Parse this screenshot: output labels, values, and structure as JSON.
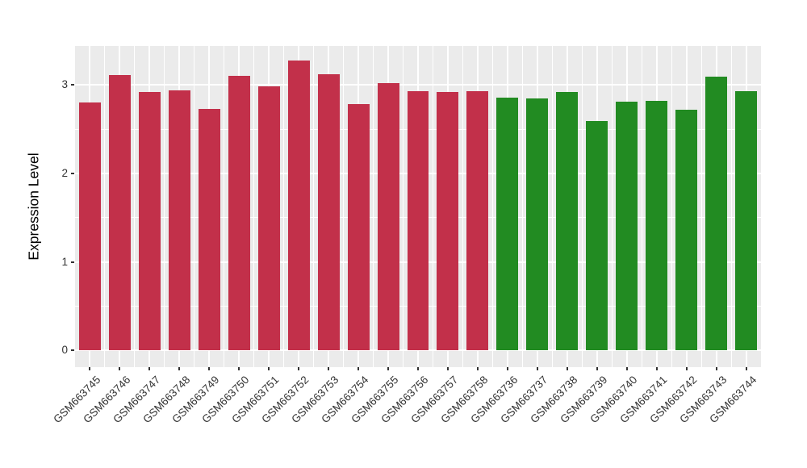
{
  "chart_data": {
    "type": "bar",
    "title": "",
    "xlabel": "",
    "ylabel": "Expression Level",
    "categories": [
      "GSM663745",
      "GSM663746",
      "GSM663747",
      "GSM663748",
      "GSM663749",
      "GSM663750",
      "GSM663751",
      "GSM663752",
      "GSM663753",
      "GSM663754",
      "GSM663755",
      "GSM663756",
      "GSM663757",
      "GSM663758",
      "GSM663736",
      "GSM663737",
      "GSM663738",
      "GSM663739",
      "GSM663740",
      "GSM663741",
      "GSM663742",
      "GSM663743",
      "GSM663744"
    ],
    "values": [
      2.8,
      3.11,
      2.92,
      2.94,
      2.73,
      3.1,
      2.98,
      3.28,
      3.12,
      2.78,
      3.02,
      2.93,
      2.92,
      2.93,
      2.86,
      2.85,
      2.92,
      2.59,
      2.81,
      2.82,
      2.72,
      3.09,
      2.93
    ],
    "series": [
      {
        "color": "#C2304A",
        "count": 14
      },
      {
        "color": "#228B22",
        "count": 9
      }
    ],
    "ytick_labels": [
      "0",
      "1",
      "2",
      "3"
    ],
    "ytick_values": [
      0,
      1,
      2,
      3
    ],
    "ytick_minor_values": [
      0.5,
      1.5,
      2.5
    ],
    "ylim": [
      -0.19,
      3.44
    ],
    "grid": true,
    "legend_position": "none",
    "panel_background": "#EBEBEB",
    "gridline_color": "#FFFFFF",
    "axis_text_color": "#333333",
    "tick_mark_color": "#333333",
    "bar_width_fraction": 0.73
  }
}
